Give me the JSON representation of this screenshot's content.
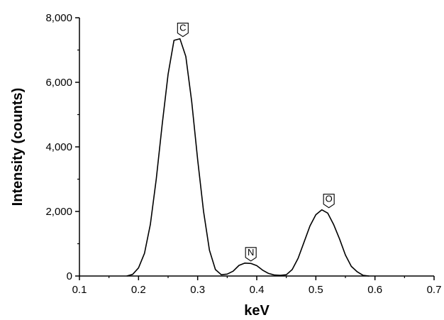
{
  "chart_data": {
    "type": "line",
    "title": "",
    "xlabel": "keV",
    "ylabel": "Intensity (counts)",
    "xlim": [
      0.1,
      0.7
    ],
    "ylim": [
      0,
      8000
    ],
    "x_ticks": [
      0.1,
      0.2,
      0.3,
      0.4,
      0.5,
      0.6,
      0.7
    ],
    "x_tick_labels": [
      "0.1",
      "0.2",
      "0.3",
      "0.4",
      "0.5",
      "0.6",
      "0.7"
    ],
    "y_ticks": [
      0,
      2000,
      4000,
      6000,
      8000
    ],
    "y_tick_labels": [
      "0",
      "2,000",
      "4,000",
      "6,000",
      "8,000"
    ],
    "grid": false,
    "legend": "none",
    "series": [
      {
        "color": "#000000",
        "x": [
          0.18,
          0.19,
          0.2,
          0.21,
          0.22,
          0.23,
          0.24,
          0.25,
          0.26,
          0.27,
          0.28,
          0.29,
          0.3,
          0.31,
          0.32,
          0.33,
          0.34,
          0.35,
          0.36,
          0.37,
          0.38,
          0.39,
          0.4,
          0.41,
          0.42,
          0.43,
          0.44,
          0.45,
          0.46,
          0.47,
          0.48,
          0.49,
          0.5,
          0.51,
          0.52,
          0.53,
          0.54,
          0.55,
          0.56,
          0.57,
          0.58,
          0.59
        ],
        "y": [
          0,
          50,
          250,
          700,
          1600,
          3000,
          4700,
          6250,
          7300,
          7350,
          6800,
          5400,
          3600,
          2000,
          800,
          200,
          40,
          60,
          150,
          330,
          400,
          390,
          320,
          180,
          80,
          30,
          20,
          40,
          200,
          550,
          1050,
          1550,
          1900,
          2050,
          1950,
          1600,
          1150,
          650,
          300,
          130,
          20,
          0
        ]
      }
    ],
    "annotations": [
      {
        "label": "C",
        "x": 0.275,
        "y": 7350
      },
      {
        "label": "N",
        "x": 0.39,
        "y": 400
      },
      {
        "label": "O",
        "x": 0.522,
        "y": 2050
      }
    ]
  }
}
